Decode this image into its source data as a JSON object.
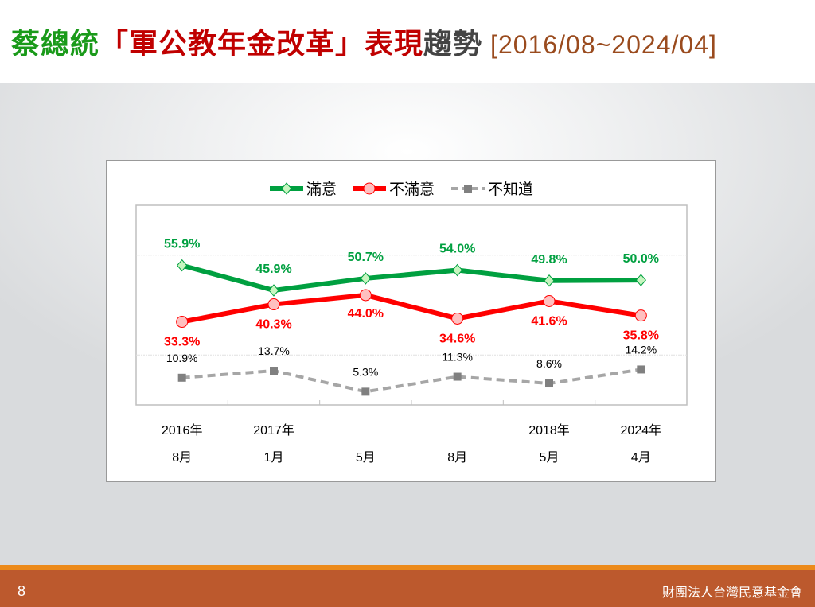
{
  "title": {
    "part1": "蔡總統",
    "part2": "「軍公教年金改革」表現",
    "part3": "趨勢",
    "date_range": "[2016/08~2024/04]"
  },
  "footer": {
    "page": "8",
    "org": "財團法人台灣民意基金會"
  },
  "chart_data": {
    "type": "line",
    "categories": [
      [
        "2016年",
        "8月"
      ],
      [
        "2017年",
        "1月"
      ],
      [
        "",
        "5月"
      ],
      [
        "",
        "8月"
      ],
      [
        "2018年",
        "5月"
      ],
      [
        "2024年",
        "4月"
      ]
    ],
    "ylim": [
      0,
      80
    ],
    "gridlines": [
      20,
      40,
      60
    ],
    "legend_position": "top",
    "series": [
      {
        "name": "滿意",
        "color": "#00a040",
        "marker": "diamond",
        "values": [
          55.9,
          45.9,
          50.7,
          54.0,
          49.8,
          50.0
        ],
        "labels": [
          "55.9%",
          "45.9%",
          "50.7%",
          "54.0%",
          "49.8%",
          "50.0%"
        ]
      },
      {
        "name": "不滿意",
        "color": "#ff0000",
        "marker": "circle",
        "values": [
          33.3,
          40.3,
          44.0,
          34.6,
          41.6,
          35.8
        ],
        "labels": [
          "33.3%",
          "40.3%",
          "44.0%",
          "34.6%",
          "41.6%",
          "35.8%"
        ]
      },
      {
        "name": "不知道",
        "color": "#a6a6a6",
        "marker": "square",
        "dashed": true,
        "values": [
          10.9,
          13.7,
          5.3,
          11.3,
          8.6,
          14.2
        ],
        "labels": [
          "10.9%",
          "13.7%",
          "5.3%",
          "11.3%",
          "8.6%",
          "14.2%"
        ]
      }
    ]
  }
}
